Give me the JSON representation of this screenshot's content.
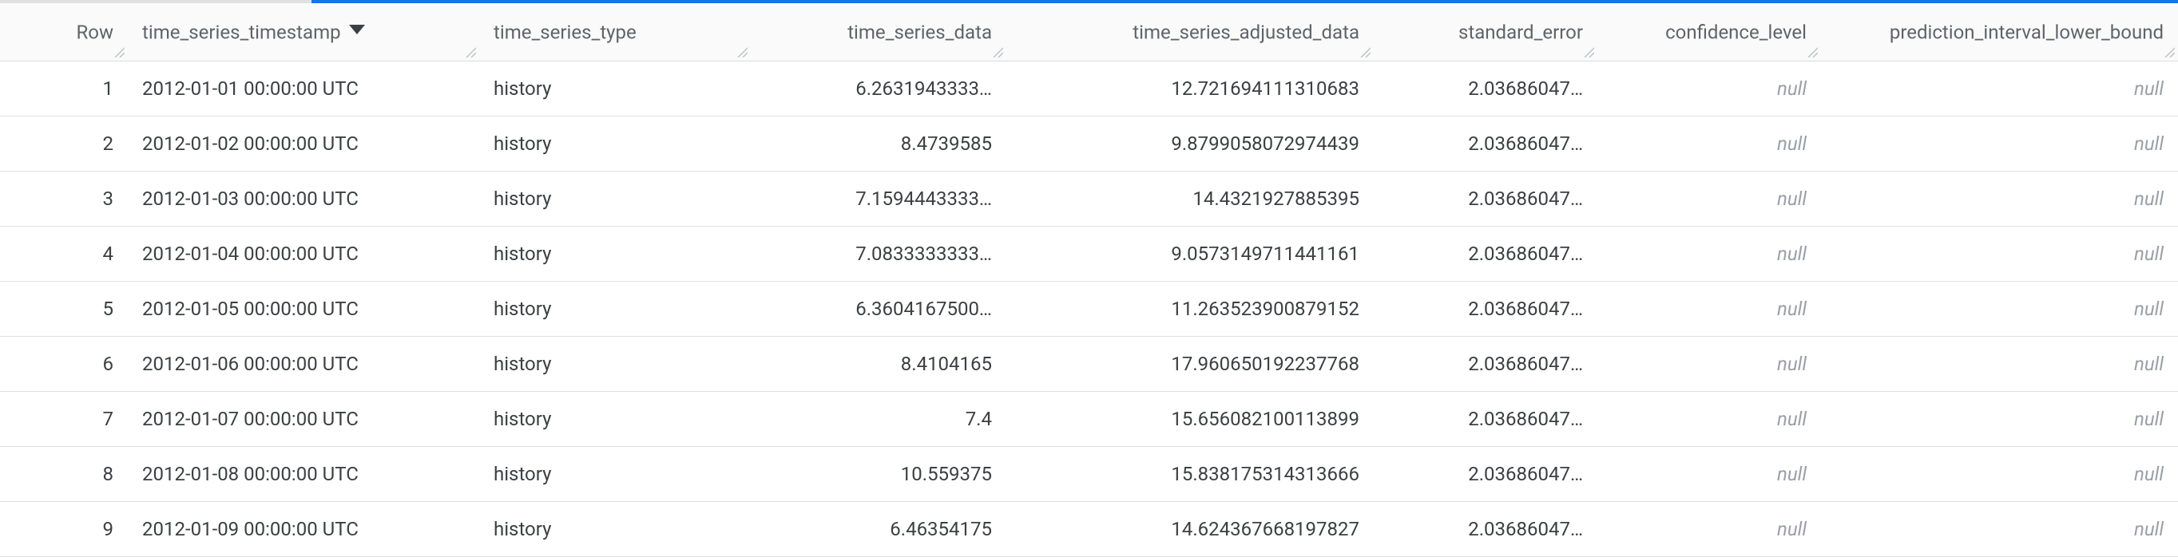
{
  "table": {
    "columns": [
      {
        "key": "row",
        "label": "Row",
        "class": "col-row",
        "align": "right",
        "sortable": false,
        "resize": true
      },
      {
        "key": "ts",
        "label": "time_series_timestamp",
        "class": "col-ts",
        "align": "left",
        "sortable": true,
        "sorted": "desc",
        "resize": true
      },
      {
        "key": "type",
        "label": "time_series_type",
        "class": "col-type",
        "align": "left",
        "sortable": false,
        "resize": true
      },
      {
        "key": "data",
        "label": "time_series_data",
        "class": "col-data",
        "align": "right",
        "sortable": false,
        "resize": true
      },
      {
        "key": "adj",
        "label": "time_series_adjusted_data",
        "class": "col-adj",
        "align": "right",
        "sortable": false,
        "resize": true
      },
      {
        "key": "se",
        "label": "standard_error",
        "class": "col-se",
        "align": "right",
        "sortable": false,
        "resize": true
      },
      {
        "key": "conf",
        "label": "confidence_level",
        "class": "col-conf",
        "align": "right",
        "sortable": false,
        "resize": true
      },
      {
        "key": "pred",
        "label": "prediction_interval_lower_bound",
        "class": "col-pred",
        "align": "right",
        "sortable": false,
        "resize": true
      }
    ],
    "rows": [
      {
        "row": "1",
        "ts": "2012-01-01 00:00:00 UTC",
        "type": "history",
        "data": "6.2631943333…",
        "adj": "12.721694111310683",
        "se": "2.03686047…",
        "conf": null,
        "pred": null
      },
      {
        "row": "2",
        "ts": "2012-01-02 00:00:00 UTC",
        "type": "history",
        "data": "8.4739585",
        "adj": "9.8799058072974439",
        "se": "2.03686047…",
        "conf": null,
        "pred": null
      },
      {
        "row": "3",
        "ts": "2012-01-03 00:00:00 UTC",
        "type": "history",
        "data": "7.1594443333…",
        "adj": "14.4321927885395",
        "se": "2.03686047…",
        "conf": null,
        "pred": null
      },
      {
        "row": "4",
        "ts": "2012-01-04 00:00:00 UTC",
        "type": "history",
        "data": "7.0833333333…",
        "adj": "9.0573149711441161",
        "se": "2.03686047…",
        "conf": null,
        "pred": null
      },
      {
        "row": "5",
        "ts": "2012-01-05 00:00:00 UTC",
        "type": "history",
        "data": "6.3604167500…",
        "adj": "11.263523900879152",
        "se": "2.03686047…",
        "conf": null,
        "pred": null
      },
      {
        "row": "6",
        "ts": "2012-01-06 00:00:00 UTC",
        "type": "history",
        "data": "8.4104165",
        "adj": "17.960650192237768",
        "se": "2.03686047…",
        "conf": null,
        "pred": null
      },
      {
        "row": "7",
        "ts": "2012-01-07 00:00:00 UTC",
        "type": "history",
        "data": "7.4",
        "adj": "15.656082100113899",
        "se": "2.03686047…",
        "conf": null,
        "pred": null
      },
      {
        "row": "8",
        "ts": "2012-01-08 00:00:00 UTC",
        "type": "history",
        "data": "10.559375",
        "adj": "15.838175314313666",
        "se": "2.03686047…",
        "conf": null,
        "pred": null
      },
      {
        "row": "9",
        "ts": "2012-01-09 00:00:00 UTC",
        "type": "history",
        "data": "6.46354175",
        "adj": "14.624367668197827",
        "se": "2.03686047…",
        "conf": null,
        "pred": null
      }
    ],
    "null_text": "null"
  },
  "colors": {
    "accent": "#1a73e8",
    "header_bg": "#fafafa",
    "border": "#e0e0e0",
    "text": "#3c4043",
    "muted": "#9aa0a6",
    "resize_handle": "#bdc1c6"
  }
}
